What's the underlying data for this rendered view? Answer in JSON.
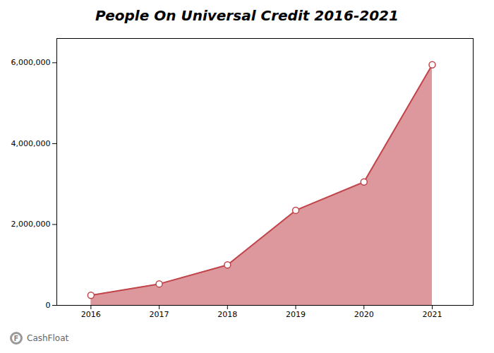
{
  "chart_data": {
    "type": "area",
    "title": "People On Universal Credit 2016-2021",
    "x": [
      2016,
      2017,
      2018,
      2019,
      2020,
      2021
    ],
    "values": [
      250000,
      530000,
      1000000,
      2350000,
      3050000,
      5950000
    ],
    "color": "#c0444a",
    "marker": "circle",
    "xlim": [
      2015.5,
      2021.6
    ],
    "xticks": [
      2016,
      2017,
      2018,
      2019,
      2020,
      2021
    ],
    "ylim": [
      0,
      6600000
    ],
    "yticks": [
      0,
      {
        "value": 2000000,
        "label": "2,000,000"
      },
      {
        "value": 4000000,
        "label": "4,000,000"
      },
      {
        "value": 6000000,
        "label": "6,000,000"
      }
    ],
    "grid": false,
    "annotations": [
      "F",
      "CashFloat"
    ]
  }
}
